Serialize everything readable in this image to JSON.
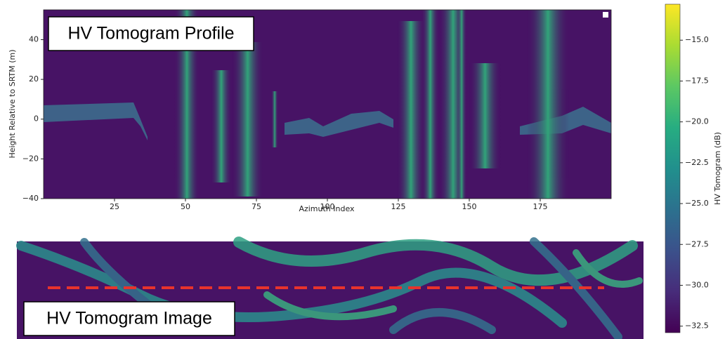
{
  "chart_data": [
    {
      "type": "heatmap",
      "title": "HV Tomogram Profile",
      "xlabel": "Azimuth Index",
      "ylabel": "Height Relative to SRTM (m)",
      "xlim": [
        0,
        200
      ],
      "ylim": [
        -40,
        55
      ],
      "xticks": [
        25,
        50,
        75,
        100,
        125,
        150,
        175
      ],
      "yticks": [
        {
          "value": 40,
          "label": "40"
        },
        {
          "value": 20,
          "label": "20"
        },
        {
          "value": 0,
          "label": "0"
        },
        {
          "value": -20,
          "label": "−20"
        },
        {
          "value": -40,
          "label": "−40"
        }
      ]
    },
    {
      "type": "image",
      "title": "HV Tomogram Image"
    },
    {
      "type": "colorbar",
      "label": "HV Tomogram (dB)",
      "clim": [
        -32.9,
        -12.8
      ],
      "colors": [
        "#440154",
        "#472c7a",
        "#3b518b",
        "#2c718e",
        "#21908d",
        "#27ad81",
        "#5cc863",
        "#aadc32",
        "#fde725"
      ],
      "ticks": [
        {
          "value": -15,
          "label": "−15.0"
        },
        {
          "value": -17.5,
          "label": "−17.5"
        },
        {
          "value": -20,
          "label": "−20.0"
        },
        {
          "value": -22.5,
          "label": "−22.5"
        },
        {
          "value": -25,
          "label": "−25.0"
        },
        {
          "value": -27.5,
          "label": "−27.5"
        },
        {
          "value": -30,
          "label": "−30.0"
        },
        {
          "value": -32.5,
          "label": "−32.5"
        }
      ]
    }
  ]
}
